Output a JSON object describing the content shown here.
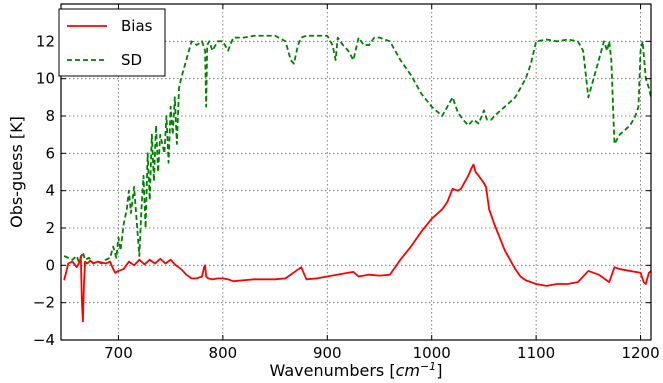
{
  "chart_data": {
    "type": "line",
    "xlabel_main": "Wavenumbers [",
    "xlabel_unit": "cm",
    "xlabel_exp": "−1",
    "xlabel_close": "]",
    "ylabel": "Obs-guess [K]",
    "xlim": [
      645,
      1210
    ],
    "ylim": [
      -4,
      14
    ],
    "xticks": [
      700,
      800,
      900,
      1000,
      1100,
      1200
    ],
    "yticks": [
      -4,
      -2,
      0,
      2,
      4,
      6,
      8,
      10,
      12
    ],
    "grid": true,
    "legend_position": "top-left",
    "series": [
      {
        "name": "Bias",
        "color": "#ff0000",
        "style": "solid",
        "x": [
          648,
          652,
          656,
          660,
          663,
          664,
          665,
          666,
          667,
          668,
          670,
          673,
          676,
          680,
          684,
          688,
          692,
          695,
          697,
          700,
          705,
          710,
          715,
          720,
          725,
          730,
          735,
          740,
          745,
          750,
          755,
          760,
          765,
          770,
          775,
          780,
          782,
          783,
          784,
          786,
          790,
          795,
          800,
          805,
          810,
          820,
          830,
          840,
          850,
          860,
          870,
          875,
          880,
          890,
          900,
          910,
          920,
          925,
          930,
          940,
          950,
          960,
          970,
          980,
          990,
          1000,
          1010,
          1015,
          1020,
          1025,
          1028,
          1030,
          1035,
          1038,
          1040,
          1042,
          1045,
          1050,
          1052,
          1055,
          1060,
          1070,
          1080,
          1085,
          1090,
          1095,
          1100,
          1110,
          1120,
          1130,
          1140,
          1150,
          1160,
          1170,
          1175,
          1180,
          1190,
          1200,
          1203,
          1205,
          1208,
          1210
        ],
        "y": [
          -0.8,
          0.1,
          0.2,
          -0.1,
          0.2,
          0.5,
          -2.0,
          -3.0,
          -1.0,
          0.2,
          0.1,
          0.25,
          0.1,
          0.2,
          0.15,
          0.1,
          0.2,
          -0.2,
          -0.4,
          -0.3,
          -0.2,
          0.2,
          0.0,
          0.3,
          0.05,
          0.3,
          0.1,
          0.35,
          0.1,
          0.3,
          0.0,
          -0.2,
          -0.5,
          -0.7,
          -0.7,
          -0.6,
          -0.1,
          0.0,
          -0.6,
          -0.7,
          -0.75,
          -0.7,
          -0.7,
          -0.75,
          -0.85,
          -0.8,
          -0.75,
          -0.75,
          -0.75,
          -0.7,
          -0.3,
          -0.1,
          -0.75,
          -0.7,
          -0.6,
          -0.5,
          -0.4,
          -0.35,
          -0.6,
          -0.5,
          -0.55,
          -0.5,
          0.3,
          1.0,
          1.8,
          2.5,
          3.0,
          3.4,
          4.1,
          4.0,
          4.1,
          4.3,
          4.8,
          5.2,
          5.4,
          5.0,
          4.8,
          4.4,
          4.2,
          3.0,
          2.2,
          0.8,
          -0.2,
          -0.6,
          -0.8,
          -0.9,
          -1.0,
          -1.1,
          -1.0,
          -1.0,
          -0.9,
          -0.3,
          -0.5,
          -0.9,
          -0.1,
          -0.2,
          -0.3,
          -0.4,
          -0.9,
          -1.0,
          -0.4,
          -0.3
        ]
      },
      {
        "name": "SD",
        "color": "#008000",
        "style": "dashed",
        "x": [
          648,
          652,
          656,
          660,
          662,
          664,
          666,
          668,
          672,
          676,
          680,
          684,
          688,
          692,
          695,
          698,
          700,
          702,
          705,
          708,
          710,
          712,
          715,
          718,
          720,
          722,
          724,
          726,
          728,
          730,
          732,
          734,
          736,
          738,
          740,
          742,
          744,
          746,
          748,
          750,
          752,
          754,
          756,
          758,
          760,
          765,
          770,
          775,
          780,
          783,
          784,
          785,
          787,
          790,
          795,
          800,
          805,
          810,
          820,
          830,
          840,
          850,
          860,
          865,
          868,
          872,
          875,
          880,
          890,
          900,
          905,
          908,
          910,
          915,
          920,
          925,
          930,
          935,
          940,
          945,
          950,
          960,
          970,
          980,
          990,
          1000,
          1010,
          1015,
          1020,
          1025,
          1030,
          1035,
          1040,
          1045,
          1048,
          1050,
          1053,
          1057,
          1060,
          1070,
          1080,
          1090,
          1095,
          1100,
          1110,
          1120,
          1130,
          1140,
          1145,
          1150,
          1155,
          1160,
          1165,
          1168,
          1170,
          1172,
          1175,
          1180,
          1190,
          1195,
          1198,
          1200,
          1202,
          1205,
          1208,
          1210
        ],
        "y": [
          0.5,
          0.4,
          0.3,
          0.5,
          0.2,
          0.4,
          0.7,
          0.3,
          0.4,
          0.1,
          0.2,
          0.1,
          0.3,
          0.4,
          1.0,
          0.4,
          1.5,
          0.8,
          2.2,
          3.0,
          4.0,
          2.8,
          4.2,
          2.0,
          0.5,
          3.0,
          4.8,
          2.0,
          6.0,
          3.5,
          7.0,
          4.5,
          7.5,
          5.0,
          7.0,
          6.5,
          6.0,
          8.0,
          5.5,
          8.5,
          7.0,
          9.0,
          6.5,
          9.5,
          10.0,
          11.0,
          12.0,
          11.8,
          12.0,
          11.5,
          8.5,
          11.8,
          12.0,
          11.5,
          12.0,
          12.0,
          11.5,
          12.2,
          12.2,
          12.3,
          12.3,
          12.3,
          12.0,
          11.0,
          10.8,
          11.8,
          12.2,
          12.3,
          12.3,
          12.3,
          11.8,
          11.0,
          12.2,
          11.8,
          11.5,
          11.0,
          12.2,
          11.8,
          11.8,
          12.2,
          12.2,
          12.0,
          11.0,
          10.2,
          9.2,
          8.5,
          8.0,
          8.5,
          9.0,
          8.2,
          7.8,
          7.5,
          7.8,
          7.6,
          8.0,
          8.3,
          7.8,
          7.8,
          8.0,
          8.5,
          9.0,
          10.0,
          10.8,
          12.0,
          12.1,
          12.0,
          12.1,
          12.0,
          11.5,
          9.0,
          10.0,
          11.0,
          12.0,
          11.5,
          12.0,
          11.0,
          6.5,
          7.0,
          7.5,
          8.0,
          8.5,
          11.5,
          12.0,
          10.0,
          9.5,
          9.0
        ]
      }
    ]
  }
}
